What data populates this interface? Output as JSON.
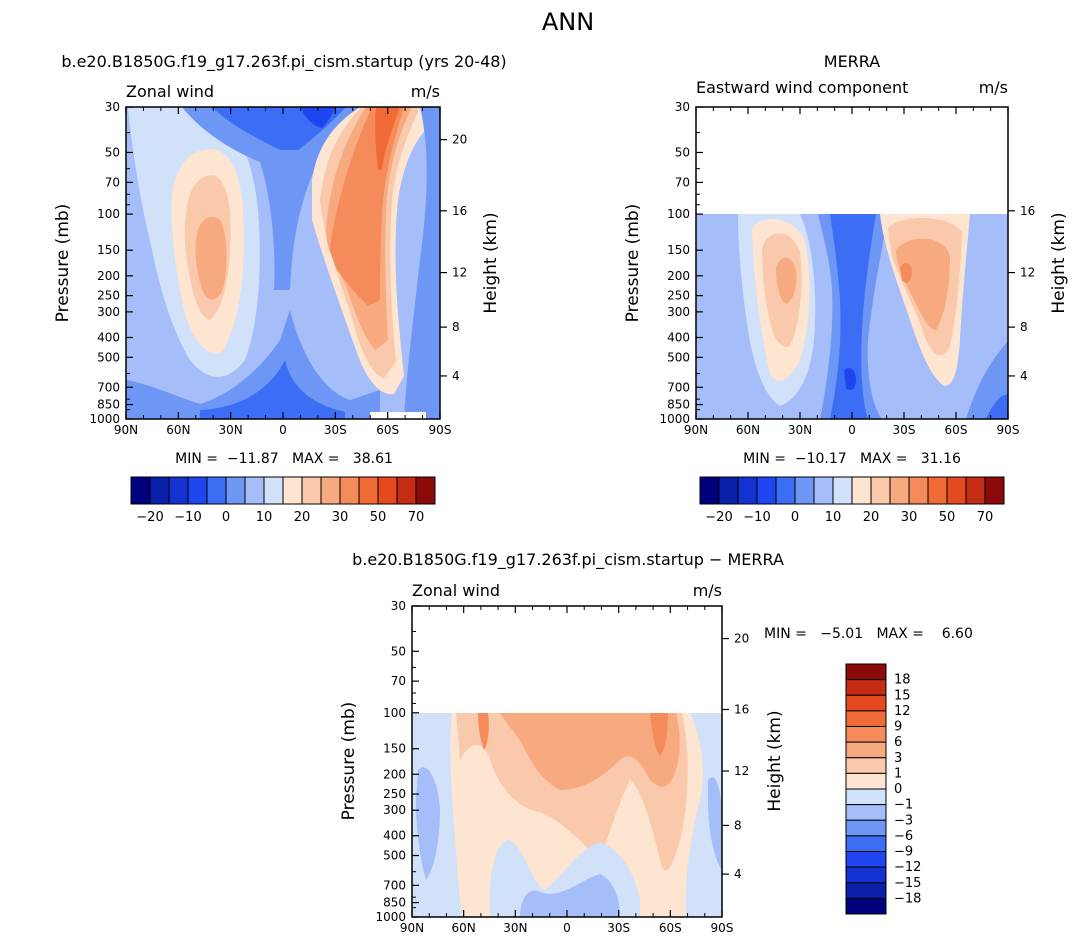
{
  "page_title": "ANN",
  "chart_data": [
    {
      "type": "heatmap",
      "subtitle": "b.e20.B1850G.f19_g17.263f.pi_cism.startup (yrs 20-48)",
      "left_label": "Zonal wind",
      "units": "m/s",
      "xlabel": "",
      "ylabel": "Pressure (mb)",
      "y2label": "Height (km)",
      "x_ticks": [
        "90N",
        "60N",
        "30N",
        "0",
        "30S",
        "60S",
        "90S"
      ],
      "y_ticks": [
        "30",
        "50",
        "70",
        "100",
        "150",
        "200",
        "250",
        "300",
        "400",
        "500",
        "700",
        "850",
        "1000"
      ],
      "y2_ticks": [
        "20",
        "16",
        "12",
        "8",
        "4"
      ],
      "stats": "MIN =  −11.87   MAX =   38.61",
      "min": -11.87,
      "max": 38.61,
      "colorbar_labels": [
        "−20",
        "−10",
        "0",
        "10",
        "20",
        "30",
        "50",
        "70"
      ],
      "data_top_mb": 30
    },
    {
      "type": "heatmap",
      "subtitle": "MERRA",
      "left_label": "Eastward wind component",
      "units": "m/s",
      "xlabel": "",
      "ylabel": "Pressure (mb)",
      "y2label": "Height (km)",
      "x_ticks": [
        "90N",
        "60N",
        "30N",
        "0",
        "30S",
        "60S",
        "90S"
      ],
      "y_ticks": [
        "30",
        "50",
        "70",
        "100",
        "150",
        "200",
        "250",
        "300",
        "400",
        "500",
        "700",
        "850",
        "1000"
      ],
      "y2_ticks": [
        "16",
        "12",
        "8",
        "4"
      ],
      "stats": "MIN =  −10.17   MAX =   31.16",
      "min": -10.17,
      "max": 31.16,
      "colorbar_labels": [
        "−20",
        "−10",
        "0",
        "10",
        "20",
        "30",
        "50",
        "70"
      ],
      "data_top_mb": 100
    },
    {
      "type": "heatmap",
      "subtitle": "b.e20.B1850G.f19_g17.263f.pi_cism.startup − MERRA",
      "left_label": "Zonal wind",
      "units": "m/s",
      "xlabel": "",
      "ylabel": "Pressure (mb)",
      "y2label": "Height (km)",
      "x_ticks": [
        "90N",
        "60N",
        "30N",
        "0",
        "30S",
        "60S",
        "90S"
      ],
      "y_ticks": [
        "30",
        "50",
        "70",
        "100",
        "150",
        "200",
        "250",
        "300",
        "400",
        "500",
        "700",
        "850",
        "1000"
      ],
      "y2_ticks": [
        "20",
        "16",
        "12",
        "8",
        "4"
      ],
      "stats": "MIN =   −5.01   MAX =    6.60",
      "min": -5.01,
      "max": 6.6,
      "colorbar_labels": [
        "18",
        "15",
        "12",
        "9",
        "6",
        "3",
        "1",
        "0",
        "−1",
        "−3",
        "−6",
        "−9",
        "−12",
        "−15",
        "−18"
      ],
      "data_top_mb": 100
    }
  ],
  "colors": {
    "abs_scale": [
      "#00007f",
      "#0a1fa8",
      "#1432d2",
      "#1e46f0",
      "#3c6ef5",
      "#6e96f5",
      "#a5bdf8",
      "#d2e1fa",
      "#fde5d2",
      "#fac8aa",
      "#f7aa80",
      "#f58b5a",
      "#f06a35",
      "#e44a1e",
      "#c42d14",
      "#8c0a0a"
    ],
    "diff_scale_top_to_bottom": [
      "#8c0a0a",
      "#c42d14",
      "#e44a1e",
      "#f06a35",
      "#f58b5a",
      "#f7aa80",
      "#fac8aa",
      "#fde5d2",
      "#d2e1fa",
      "#a5bdf8",
      "#6e96f5",
      "#3c6ef5",
      "#1e46f0",
      "#1432d2",
      "#0a1fa8",
      "#00007f"
    ]
  }
}
